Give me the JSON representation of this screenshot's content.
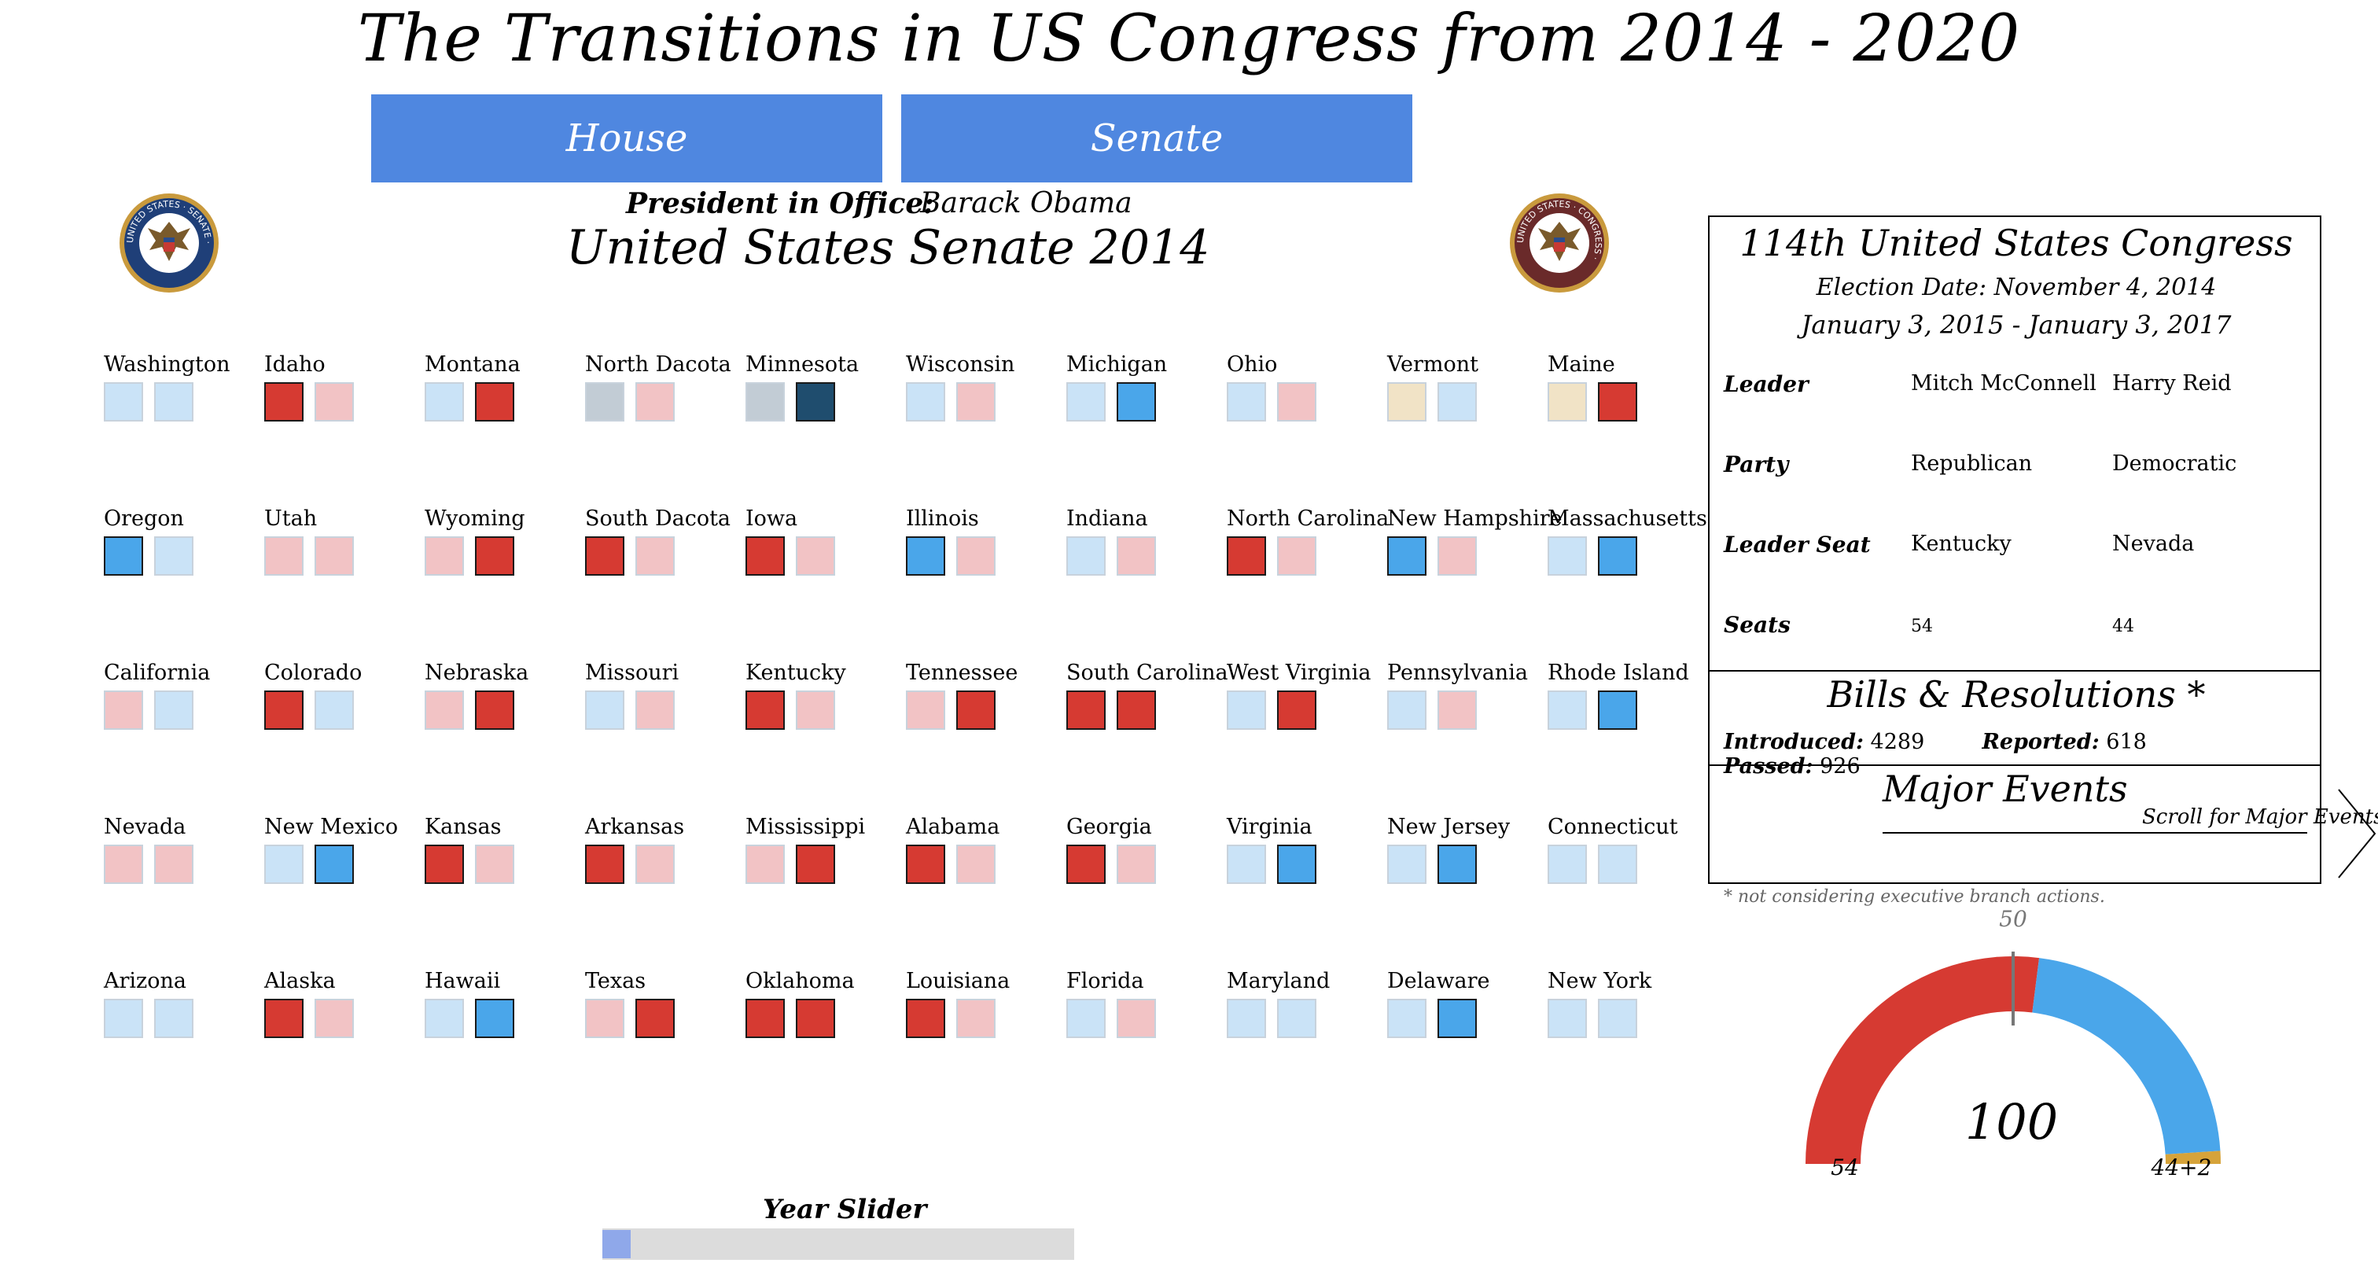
{
  "title": "The Transitions in US Congress from 2014 - 2020",
  "tabs": {
    "house": "House",
    "senate": "Senate"
  },
  "president": {
    "label": "President in Office:",
    "name": "Barack Obama"
  },
  "chamber_heading": "United States Senate 2014",
  "seal_left": {
    "ring_text": "UNITED STATES · SENATE ·"
  },
  "seal_right": {
    "ring_text": "UNITED STATES · CONGRESS ·"
  },
  "colors": {
    "rep_light": "#f2c3c5",
    "rep": "#d63a32",
    "dem_light": "#cae3f7",
    "dem": "#4aa6ea",
    "dem_dark": "#1f4d6e",
    "ind_gray": "#c2ccd5",
    "ind_beige": "#f1e3c6",
    "other_gold": "#d6a33a"
  },
  "states": [
    {
      "name": "Washington",
      "seats": [
        "dem_light",
        "dem_light"
      ]
    },
    {
      "name": "Idaho",
      "seats": [
        "rep",
        "rep_light"
      ]
    },
    {
      "name": "Montana",
      "seats": [
        "dem_light",
        "rep"
      ]
    },
    {
      "name": "North Dacota",
      "seats": [
        "ind_gray",
        "rep_light"
      ]
    },
    {
      "name": "Minnesota",
      "seats": [
        "ind_gray",
        "dem_dark"
      ]
    },
    {
      "name": "Wisconsin",
      "seats": [
        "dem_light",
        "rep_light"
      ]
    },
    {
      "name": "Michigan",
      "seats": [
        "dem_light",
        "dem"
      ]
    },
    {
      "name": "Ohio",
      "seats": [
        "dem_light",
        "rep_light"
      ]
    },
    {
      "name": "Vermont",
      "seats": [
        "ind_beige",
        "dem_light"
      ]
    },
    {
      "name": "Maine",
      "seats": [
        "ind_beige",
        "rep"
      ]
    },
    {
      "name": "Oregon",
      "seats": [
        "dem",
        "dem_light"
      ]
    },
    {
      "name": "Utah",
      "seats": [
        "rep_light",
        "rep_light"
      ]
    },
    {
      "name": "Wyoming",
      "seats": [
        "rep_light",
        "rep"
      ]
    },
    {
      "name": "South Dacota",
      "seats": [
        "rep",
        "rep_light"
      ]
    },
    {
      "name": "Iowa",
      "seats": [
        "rep",
        "rep_light"
      ]
    },
    {
      "name": "Illinois",
      "seats": [
        "dem",
        "rep_light"
      ]
    },
    {
      "name": "Indiana",
      "seats": [
        "dem_light",
        "rep_light"
      ]
    },
    {
      "name": "North Carolina",
      "seats": [
        "rep",
        "rep_light"
      ]
    },
    {
      "name": "New Hampshire",
      "seats": [
        "dem",
        "rep_light"
      ]
    },
    {
      "name": "Massachusetts",
      "seats": [
        "dem_light",
        "dem"
      ]
    },
    {
      "name": "California",
      "seats": [
        "rep_light",
        "dem_light"
      ]
    },
    {
      "name": "Colorado",
      "seats": [
        "rep",
        "dem_light"
      ]
    },
    {
      "name": "Nebraska",
      "seats": [
        "rep_light",
        "rep"
      ]
    },
    {
      "name": "Missouri",
      "seats": [
        "dem_light",
        "rep_light"
      ]
    },
    {
      "name": "Kentucky",
      "seats": [
        "rep",
        "rep_light"
      ]
    },
    {
      "name": "Tennessee",
      "seats": [
        "rep_light",
        "rep"
      ]
    },
    {
      "name": "South Carolina",
      "seats": [
        "rep",
        "rep"
      ]
    },
    {
      "name": "West Virginia",
      "seats": [
        "dem_light",
        "rep"
      ]
    },
    {
      "name": "Pennsylvania",
      "seats": [
        "dem_light",
        "rep_light"
      ]
    },
    {
      "name": "Rhode Island",
      "seats": [
        "dem_light",
        "dem"
      ]
    },
    {
      "name": "Nevada",
      "seats": [
        "rep_light",
        "rep_light"
      ]
    },
    {
      "name": "New Mexico",
      "seats": [
        "dem_light",
        "dem"
      ]
    },
    {
      "name": "Kansas",
      "seats": [
        "rep",
        "rep_light"
      ]
    },
    {
      "name": "Arkansas",
      "seats": [
        "rep",
        "rep_light"
      ]
    },
    {
      "name": "Mississippi",
      "seats": [
        "rep_light",
        "rep"
      ]
    },
    {
      "name": "Alabama",
      "seats": [
        "rep",
        "rep_light"
      ]
    },
    {
      "name": "Georgia",
      "seats": [
        "rep",
        "rep_light"
      ]
    },
    {
      "name": "Virginia",
      "seats": [
        "dem_light",
        "dem"
      ]
    },
    {
      "name": "New Jersey",
      "seats": [
        "dem_light",
        "dem"
      ]
    },
    {
      "name": "Connecticut",
      "seats": [
        "dem_light",
        "dem_light"
      ]
    },
    {
      "name": "Arizona",
      "seats": [
        "dem_light",
        "dem_light"
      ]
    },
    {
      "name": "Alaska",
      "seats": [
        "rep",
        "rep_light"
      ]
    },
    {
      "name": "Hawaii",
      "seats": [
        "dem_light",
        "dem"
      ]
    },
    {
      "name": "Texas",
      "seats": [
        "rep_light",
        "rep"
      ]
    },
    {
      "name": "Oklahoma",
      "seats": [
        "rep",
        "rep"
      ]
    },
    {
      "name": "Louisiana",
      "seats": [
        "rep",
        "rep_light"
      ]
    },
    {
      "name": "Florida",
      "seats": [
        "dem_light",
        "rep_light"
      ]
    },
    {
      "name": "Maryland",
      "seats": [
        "dem_light",
        "dem_light"
      ]
    },
    {
      "name": "Delaware",
      "seats": [
        "dem_light",
        "dem"
      ]
    },
    {
      "name": "New York",
      "seats": [
        "dem_light",
        "dem_light"
      ]
    }
  ],
  "info": {
    "congress_title": "114th United States Congress",
    "election_date": "Election Date: November 4, 2014",
    "term": "January 3, 2015 - January 3, 2017",
    "rows": [
      {
        "label": "Leader",
        "v1": "Mitch McConnell",
        "v2": "Harry Reid"
      },
      {
        "label": "Party",
        "v1": "Republican",
        "v2": "Democratic"
      },
      {
        "label": "Leader Seat",
        "v1": "Kentucky",
        "v2": "Nevada"
      },
      {
        "label": "Seats",
        "v1": "54",
        "v2": "44"
      }
    ],
    "bills_title": "Bills & Resolutions *",
    "introduced_label": "Introduced:",
    "introduced": "4289",
    "reported_label": "Reported:",
    "reported": "618",
    "passed_label": "Passed:",
    "passed": "926",
    "events_title": "Major Events",
    "events_scroll": "Scroll for Major Events",
    "footnote": "* not considering executive branch actions."
  },
  "gauge": {
    "total": "100",
    "majority_label": "50",
    "rep_label": "54",
    "dem_label": "44+2",
    "rep_seats": 54,
    "dem_seats": 44,
    "other_seats": 2
  },
  "slider": {
    "label": "Year Slider",
    "position": 0
  }
}
